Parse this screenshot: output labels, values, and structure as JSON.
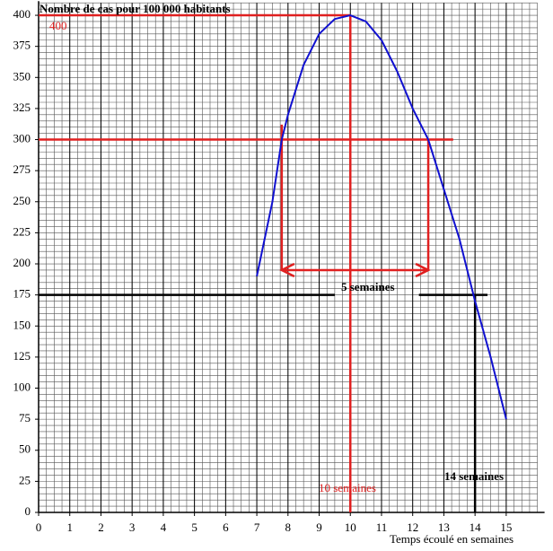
{
  "chart_data": {
    "type": "line",
    "title": "Nombre de cas pour 100 000 habitants",
    "x_label": "Temps écoulé en semaines",
    "annotations": [
      "400",
      "5 semaines",
      "10 semaines",
      "14 semaines"
    ],
    "x": [
      7,
      7.5,
      7.8,
      8,
      8.5,
      9,
      9.5,
      10,
      10.5,
      11,
      11.5,
      12,
      12.5,
      13,
      13.5,
      14,
      14.5,
      15
    ],
    "series": [
      {
        "color": "#1010d0",
        "values": [
          190,
          250,
          300,
          320,
          360,
          385,
          397,
          400,
          395,
          380,
          355,
          325,
          300,
          260,
          220,
          170,
          125,
          75
        ]
      }
    ],
    "xlim": [
      0,
      16
    ],
    "ylim": [
      0,
      410
    ],
    "xticks": [
      0,
      1,
      2,
      3,
      4,
      5,
      6,
      7,
      8,
      9,
      10,
      11,
      12,
      13,
      14,
      15
    ],
    "yticks": [
      0,
      25,
      50,
      75,
      100,
      125,
      150,
      175,
      200,
      225,
      250,
      275,
      300,
      325,
      350,
      375,
      400
    ],
    "minor_grid": {
      "x": 0.25,
      "y": 5
    },
    "guides": [
      {
        "y": 300,
        "x_from": 0,
        "x_to": 13.3,
        "color": "#e02020"
      },
      {
        "y": 400,
        "x_from": 0,
        "x_to": 10,
        "color": "#e02020"
      },
      {
        "x": 10,
        "y_from": 0,
        "y_to": 400,
        "color": "#e02020"
      },
      {
        "x": 7.8,
        "y_from": 195,
        "y_to": 312,
        "color": "#e02020"
      },
      {
        "x": 12.5,
        "y_from": 195,
        "y_to": 300,
        "color": "#e02020"
      },
      {
        "y": 175,
        "x_from": 0,
        "x_to": 9.5,
        "color": "#000000"
      },
      {
        "y": 175,
        "x_from": 12.2,
        "x_to": 14.4,
        "color": "#000000"
      },
      {
        "x": 14,
        "y_from": 0,
        "y_to": 175,
        "color": "#000000"
      }
    ],
    "arrow": {
      "y": 195,
      "x_from": 7.8,
      "x_to": 12.5,
      "color": "#e02020"
    }
  }
}
